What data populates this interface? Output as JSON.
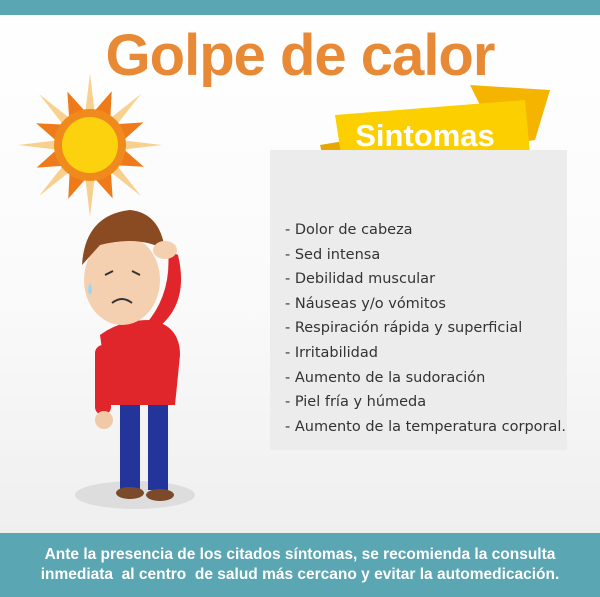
{
  "title": "Golpe de calor",
  "section_label": "Sintomas",
  "symptoms": [
    "- Dolor de cabeza",
    "- Sed intensa",
    "- Debilidad muscular",
    "- Náuseas y/o vómitos",
    "- Respiración rápida y superficial",
    "- Irritabilidad",
    "- Aumento de la sudoración",
    "- Piel fría y húmeda",
    "- Aumento de la temperatura corporal."
  ],
  "footer": {
    "line1": "Ante la presencia de los citados síntomas, se recomienda la consulta",
    "line2": "inmediata  al centro  de salud más cercano y evitar la automedicación."
  },
  "colors": {
    "teal": "#5aa6b2",
    "title_orange": "#e88a35",
    "ribbon_yellow": "#f9c80e"
  }
}
